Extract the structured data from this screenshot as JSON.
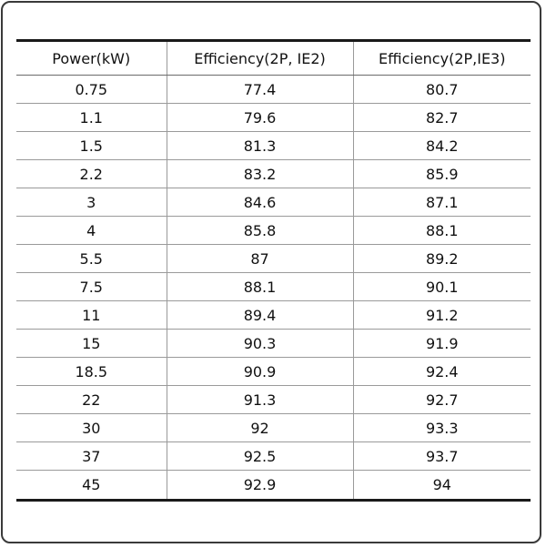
{
  "table": {
    "headers": [
      "Power(kW)",
      "Efficiency(2P, IE2)",
      "Efficiency(2P,IE3)"
    ],
    "rows": [
      [
        "0.75",
        "77.4",
        "80.7"
      ],
      [
        "1.1",
        "79.6",
        "82.7"
      ],
      [
        "1.5",
        "81.3",
        "84.2"
      ],
      [
        "2.2",
        "83.2",
        "85.9"
      ],
      [
        "3",
        "84.6",
        "87.1"
      ],
      [
        "4",
        "85.8",
        "88.1"
      ],
      [
        "5.5",
        "87",
        "89.2"
      ],
      [
        "7.5",
        "88.1",
        "90.1"
      ],
      [
        "11",
        "89.4",
        "91.2"
      ],
      [
        "15",
        "90.3",
        "91.9"
      ],
      [
        "18.5",
        "90.9",
        "92.4"
      ],
      [
        "22",
        "91.3",
        "92.7"
      ],
      [
        "30",
        "92",
        "93.3"
      ],
      [
        "37",
        "92.5",
        "93.7"
      ],
      [
        "45",
        "92.9",
        "94"
      ]
    ]
  }
}
